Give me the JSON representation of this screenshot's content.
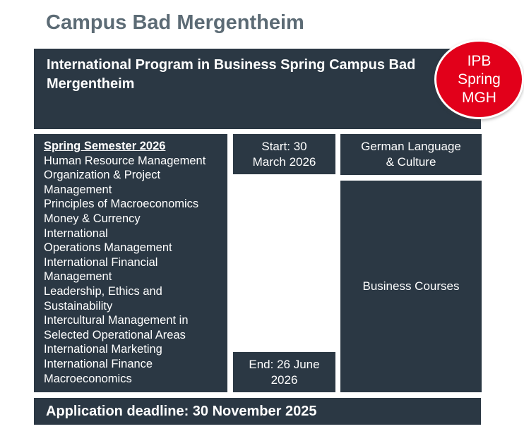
{
  "page": {
    "title": "Campus Bad Mergentheim"
  },
  "header": {
    "title": "International Program in Business Spring Campus Bad Mergentheim"
  },
  "badge": {
    "text": "IPB\nSpring\nMGH",
    "color": "#e2001a"
  },
  "semester": {
    "heading": "Spring Semester 2026",
    "course_lines": [
      "Human Resource Management",
      "Organization & Project",
      "Management",
      "Principles of Macroeconomics",
      "Money & Currency",
      "International",
      "Operations Management",
      "International Financial",
      "Management",
      "Leadership, Ethics and",
      "Sustainability",
      "Intercultural Management in",
      "Selected Operational Areas",
      "International Marketing",
      "International Finance",
      "Macroeconomics"
    ]
  },
  "timeline": {
    "start": "Start: 30\nMarch 2026",
    "end": "End: 26 June\n2026"
  },
  "categories": {
    "language": "German Language\n& Culture",
    "business": "Business Courses"
  },
  "deadline": {
    "text": "Application deadline: 30 November 2025"
  },
  "colors": {
    "panel_dark": "#2b3844",
    "accent_red": "#e2001a",
    "title_gray": "#5c6b75"
  }
}
